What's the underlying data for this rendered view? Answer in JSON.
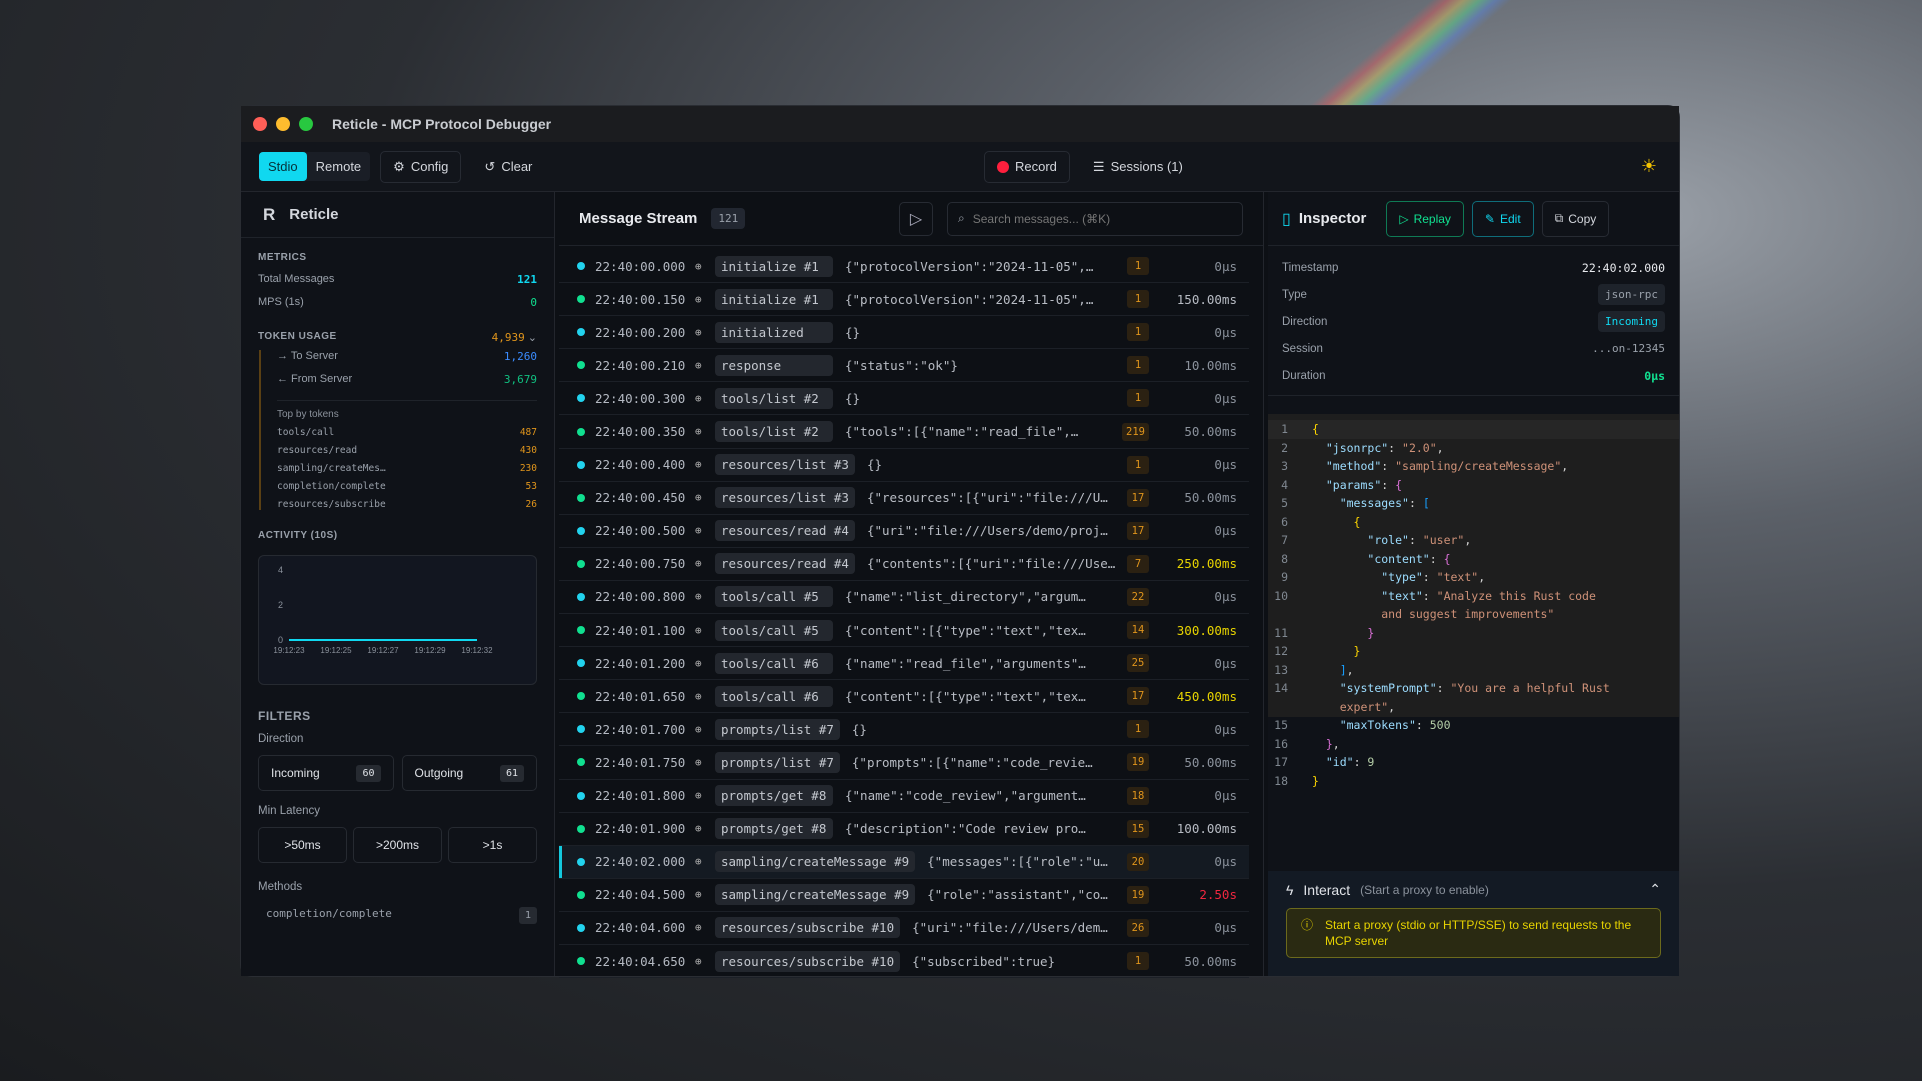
{
  "window": {
    "title": "Reticle - MCP Protocol Debugger"
  },
  "toolbar": {
    "mode_stdio": "Stdio",
    "mode_remote": "Remote",
    "config": "Config",
    "clear": "Clear",
    "record": "Record",
    "sessions": "Sessions (1)"
  },
  "sidebar": {
    "brand": "Reticle",
    "metrics_h": "METRICS",
    "total_label": "Total Messages",
    "total": "121",
    "mps_label": "MPS (1s)",
    "mps": "0",
    "token_h": "TOKEN USAGE",
    "token_total": "4,939",
    "to_server_label": "→ To Server",
    "to_server": "1,260",
    "from_server_label": "← From Server",
    "from_server": "3,679",
    "top_h": "Top by tokens",
    "top": [
      {
        "m": "tools/call",
        "v": "487"
      },
      {
        "m": "resources/read",
        "v": "430"
      },
      {
        "m": "sampling/createMes…",
        "v": "230"
      },
      {
        "m": "completion/complete",
        "v": "53"
      },
      {
        "m": "resources/subscribe",
        "v": "26"
      }
    ],
    "activity_h": "ACTIVITY (10S)",
    "filters_h": "FILTERS",
    "direction_h": "Direction",
    "incoming": "Incoming",
    "incoming_count": "60",
    "outgoing": "Outgoing",
    "outgoing_count": "61",
    "latency_h": "Min Latency",
    "lat1": ">50ms",
    "lat2": ">200ms",
    "lat3": ">1s",
    "methods_h": "Methods",
    "method_first": "completion/complete",
    "method_first_count": "1"
  },
  "chart_data": {
    "type": "line",
    "title": "ACTIVITY (10S)",
    "x": [
      "19:12:23",
      "19:12:25",
      "19:12:27",
      "19:12:29",
      "19:12:32"
    ],
    "values": [
      0,
      0,
      0,
      0,
      0
    ],
    "yticks": [
      "4",
      "2",
      "0"
    ],
    "ylim": [
      0,
      4
    ],
    "color": "#10d8f0"
  },
  "stream": {
    "title": "Message Stream",
    "count": "121",
    "search_placeholder": "Search messages... (⌘K)",
    "rows": [
      {
        "t": "22:40:00.000",
        "d": "in",
        "m": "initialize #1",
        "p": "{\"protocolVersion\":\"2024-11-05\",…",
        "k": "1",
        "l": "0µs",
        "c": ""
      },
      {
        "t": "22:40:00.150",
        "d": "out",
        "m": "initialize #1",
        "p": "{\"protocolVersion\":\"2024-11-05\",…",
        "k": "1",
        "l": "150.00ms",
        "c": "mid2"
      },
      {
        "t": "22:40:00.200",
        "d": "in",
        "m": "initialized",
        "p": "{}",
        "k": "1",
        "l": "0µs",
        "c": ""
      },
      {
        "t": "22:40:00.210",
        "d": "out",
        "m": "response",
        "p": "{\"status\":\"ok\"}",
        "k": "1",
        "l": "10.00ms",
        "c": ""
      },
      {
        "t": "22:40:00.300",
        "d": "in",
        "m": "tools/list #2",
        "p": "{}",
        "k": "1",
        "l": "0µs",
        "c": ""
      },
      {
        "t": "22:40:00.350",
        "d": "out",
        "m": "tools/list #2",
        "p": "{\"tools\":[{\"name\":\"read_file\",…",
        "k": "219",
        "l": "50.00ms",
        "c": ""
      },
      {
        "t": "22:40:00.400",
        "d": "in",
        "m": "resources/list #3",
        "p": "{}",
        "k": "1",
        "l": "0µs",
        "c": ""
      },
      {
        "t": "22:40:00.450",
        "d": "out",
        "m": "resources/list #3",
        "p": "{\"resources\":[{\"uri\":\"file:///U…",
        "k": "17",
        "l": "50.00ms",
        "c": ""
      },
      {
        "t": "22:40:00.500",
        "d": "in",
        "m": "resources/read #4",
        "p": "{\"uri\":\"file:///Users/demo/proj…",
        "k": "17",
        "l": "0µs",
        "c": ""
      },
      {
        "t": "22:40:00.750",
        "d": "out",
        "m": "resources/read #4",
        "p": "{\"contents\":[{\"uri\":\"file:///Use…",
        "k": "7",
        "l": "250.00ms",
        "c": "warn"
      },
      {
        "t": "22:40:00.800",
        "d": "in",
        "m": "tools/call #5",
        "p": "{\"name\":\"list_directory\",\"argum…",
        "k": "22",
        "l": "0µs",
        "c": ""
      },
      {
        "t": "22:40:01.100",
        "d": "out",
        "m": "tools/call #5",
        "p": "{\"content\":[{\"type\":\"text\",\"tex…",
        "k": "14",
        "l": "300.00ms",
        "c": "warn"
      },
      {
        "t": "22:40:01.200",
        "d": "in",
        "m": "tools/call #6",
        "p": "{\"name\":\"read_file\",\"arguments\"…",
        "k": "25",
        "l": "0µs",
        "c": ""
      },
      {
        "t": "22:40:01.650",
        "d": "out",
        "m": "tools/call #6",
        "p": "{\"content\":[{\"type\":\"text\",\"tex…",
        "k": "17",
        "l": "450.00ms",
        "c": "warn"
      },
      {
        "t": "22:40:01.700",
        "d": "in",
        "m": "prompts/list #7",
        "p": "{}",
        "k": "1",
        "l": "0µs",
        "c": ""
      },
      {
        "t": "22:40:01.750",
        "d": "out",
        "m": "prompts/list #7",
        "p": "{\"prompts\":[{\"name\":\"code_revie…",
        "k": "19",
        "l": "50.00ms",
        "c": ""
      },
      {
        "t": "22:40:01.800",
        "d": "in",
        "m": "prompts/get #8",
        "p": "{\"name\":\"code_review\",\"argument…",
        "k": "18",
        "l": "0µs",
        "c": ""
      },
      {
        "t": "22:40:01.900",
        "d": "out",
        "m": "prompts/get #8",
        "p": "{\"description\":\"Code review pro…",
        "k": "15",
        "l": "100.00ms",
        "c": "mid2"
      },
      {
        "t": "22:40:02.000",
        "d": "in",
        "m": "sampling/createMessage #9",
        "p": "{\"messages\":[{\"role\":\"u…",
        "k": "20",
        "l": "0µs",
        "c": "",
        "sel": true
      },
      {
        "t": "22:40:04.500",
        "d": "out",
        "m": "sampling/createMessage #9",
        "p": "{\"role\":\"assistant\",\"co…",
        "k": "19",
        "l": "2.50s",
        "c": "err"
      },
      {
        "t": "22:40:04.600",
        "d": "in",
        "m": "resources/subscribe #10",
        "p": "{\"uri\":\"file:///Users/dem…",
        "k": "26",
        "l": "0µs",
        "c": ""
      },
      {
        "t": "22:40:04.650",
        "d": "out",
        "m": "resources/subscribe #10",
        "p": "{\"subscribed\":true}",
        "k": "1",
        "l": "50.00ms",
        "c": ""
      }
    ]
  },
  "inspector": {
    "title": "Inspector",
    "replay": "Replay",
    "edit": "Edit",
    "copy": "Copy",
    "timestamp_label": "Timestamp",
    "timestamp": "22:40:02.000",
    "type_label": "Type",
    "type": "json-rpc",
    "direction_label": "Direction",
    "direction": "Incoming",
    "session_label": "Session",
    "session": "...on-12345",
    "duration_label": "Duration",
    "duration": "0µs",
    "code": [
      {
        "n": "1",
        "h": "<span class='b1'>{</span>"
      },
      {
        "n": "2",
        "h": "  <span class='k'>\"jsonrpc\"</span><span class='p'>: </span><span class='s'>\"2.0\"</span><span class='p'>,</span>"
      },
      {
        "n": "3",
        "h": "  <span class='k'>\"method\"</span><span class='p'>: </span><span class='s'>\"sampling/createMessage\"</span><span class='p'>,</span>"
      },
      {
        "n": "4",
        "h": "  <span class='k'>\"params\"</span><span class='p'>: </span><span class='b2'>{</span>"
      },
      {
        "n": "5",
        "h": "    <span class='k'>\"messages\"</span><span class='p'>: </span><span class='b3'>[</span>"
      },
      {
        "n": "6",
        "h": "      <span class='b1'>{</span>"
      },
      {
        "n": "7",
        "h": "        <span class='k'>\"role\"</span><span class='p'>: </span><span class='s'>\"user\"</span><span class='p'>,</span>"
      },
      {
        "n": "8",
        "h": "        <span class='k'>\"content\"</span><span class='p'>: </span><span class='b2'>{</span>"
      },
      {
        "n": "9",
        "h": "          <span class='k'>\"type\"</span><span class='p'>: </span><span class='s'>\"text\"</span><span class='p'>,</span>"
      },
      {
        "n": "10",
        "h": "          <span class='k'>\"text\"</span><span class='p'>: </span><span class='s'>\"Analyze this Rust code\n          and suggest improvements\"</span>"
      },
      {
        "n": "11",
        "h": "        <span class='b2'>}</span>"
      },
      {
        "n": "12",
        "h": "      <span class='b1'>}</span>"
      },
      {
        "n": "13",
        "h": "    <span class='b3'>]</span><span class='p'>,</span>"
      },
      {
        "n": "14",
        "h": "    <span class='k'>\"systemPrompt\"</span><span class='p'>: </span><span class='s'>\"You are a helpful Rust\n    expert\"</span><span class='p'>,</span>"
      },
      {
        "n": "15",
        "h": "    <span class='k'>\"maxTokens\"</span><span class='p'>: </span><span class='n'>500</span>"
      },
      {
        "n": "16",
        "h": "  <span class='b2'>}</span><span class='p'>,</span>"
      },
      {
        "n": "17",
        "h": "  <span class='k'>\"id\"</span><span class='p'>: </span><span class='n'>9</span>"
      },
      {
        "n": "18",
        "h": "<span class='b1'>}</span>"
      }
    ]
  },
  "interact": {
    "title": "Interact",
    "hint": "(Start a proxy to enable)",
    "warning": "Start a proxy (stdio or HTTP/SSE) to send requests to the MCP server"
  },
  "colors": {
    "accent": "#10d8f0",
    "incoming": "#22d3ee",
    "outgoing": "#10e090",
    "warn": "#e8d400",
    "error": "#f0263f",
    "tokens": "#e0951c"
  }
}
